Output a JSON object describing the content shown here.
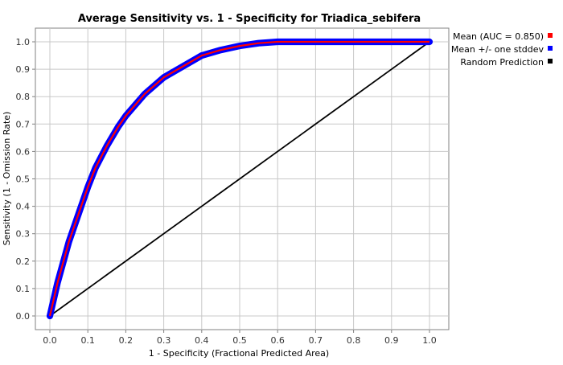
{
  "chart_data": {
    "type": "line",
    "title": "Average Sensitivity vs. 1 - Specificity for Triadica_sebifera",
    "xlabel": "1 - Specificity (Fractional Predicted Area)",
    "ylabel": "Sensitivity (1 - Omission Rate)",
    "xlim": [
      0.0,
      1.0
    ],
    "ylim": [
      0.0,
      1.0
    ],
    "x_ticks": [
      "0.0",
      "0.1",
      "0.2",
      "0.3",
      "0.4",
      "0.5",
      "0.6",
      "0.7",
      "0.8",
      "0.9",
      "1.0"
    ],
    "y_ticks": [
      "0.0",
      "0.1",
      "0.2",
      "0.3",
      "0.4",
      "0.5",
      "0.6",
      "0.7",
      "0.8",
      "0.9",
      "1.0"
    ],
    "grid": true,
    "legend_position": "right",
    "series": [
      {
        "name": "Mean (AUC = 0.850)",
        "color": "#ff0000",
        "x": [
          0.0,
          0.02,
          0.05,
          0.08,
          0.1,
          0.12,
          0.15,
          0.18,
          0.2,
          0.25,
          0.3,
          0.35,
          0.4,
          0.45,
          0.5,
          0.55,
          0.6,
          0.7,
          0.8,
          0.9,
          1.0
        ],
        "y": [
          0.0,
          0.12,
          0.27,
          0.39,
          0.47,
          0.54,
          0.62,
          0.69,
          0.73,
          0.81,
          0.87,
          0.91,
          0.95,
          0.97,
          0.985,
          0.995,
          1.0,
          1.0,
          1.0,
          1.0,
          1.0
        ]
      },
      {
        "name": "Mean +/- one stddev",
        "color": "#0000ff",
        "band_width": 0.012
      },
      {
        "name": "Random Prediction",
        "color": "#000000",
        "x": [
          0.0,
          1.0
        ],
        "y": [
          0.0,
          1.0
        ]
      }
    ]
  }
}
